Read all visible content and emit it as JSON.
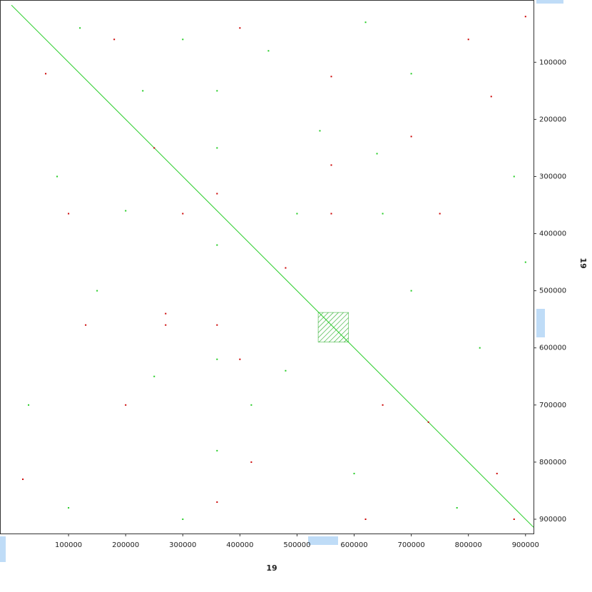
{
  "chart_data": {
    "type": "dotplot",
    "x_label": "19",
    "y_label": "19",
    "xlim": [
      -20000,
      914000
    ],
    "ylim": [
      -9000,
      925000
    ],
    "y_inverted": true,
    "xticks": [
      100000,
      200000,
      300000,
      400000,
      500000,
      600000,
      700000,
      800000,
      900000
    ],
    "yticks": [
      100000,
      200000,
      300000,
      400000,
      500000,
      600000,
      700000,
      800000,
      900000
    ],
    "diagonal": {
      "color": "#22cc22",
      "x": [
        0,
        914000
      ],
      "y": [
        0,
        914000
      ]
    },
    "block": {
      "color": "#22aa22",
      "x": [
        537000,
        590000
      ],
      "y": [
        538000,
        590000
      ]
    },
    "forward": {
      "color": "#22cc22",
      "x": [
        120000,
        300000,
        450000,
        620000,
        700000,
        360000,
        360000,
        360000,
        360000,
        360000,
        200000,
        500000,
        650000,
        80000,
        150000,
        250000,
        420000,
        600000,
        820000,
        700000,
        540000,
        880000,
        100000,
        300000,
        480000,
        780000,
        30000,
        230000,
        640000,
        900000
      ],
      "y": [
        40000,
        60000,
        80000,
        30000,
        120000,
        150000,
        250000,
        420000,
        620000,
        780000,
        360000,
        365000,
        365000,
        300000,
        500000,
        650000,
        700000,
        820000,
        600000,
        500000,
        220000,
        300000,
        880000,
        900000,
        640000,
        880000,
        700000,
        150000,
        260000,
        450000
      ]
    },
    "reverse": {
      "color": "#cc0000",
      "x": [
        60000,
        180000,
        400000,
        800000,
        900000,
        360000,
        360000,
        360000,
        270000,
        270000,
        130000,
        560000,
        560000,
        560000,
        100000,
        300000,
        750000,
        700000,
        840000,
        200000,
        420000,
        620000,
        730000,
        850000,
        20000,
        480000,
        250000,
        650000,
        400000,
        880000
      ],
      "y": [
        120000,
        60000,
        40000,
        60000,
        20000,
        330000,
        560000,
        870000,
        540000,
        560000,
        560000,
        125000,
        280000,
        365000,
        365000,
        365000,
        365000,
        230000,
        160000,
        700000,
        800000,
        900000,
        730000,
        820000,
        830000,
        460000,
        250000,
        700000,
        620000,
        900000
      ]
    }
  }
}
